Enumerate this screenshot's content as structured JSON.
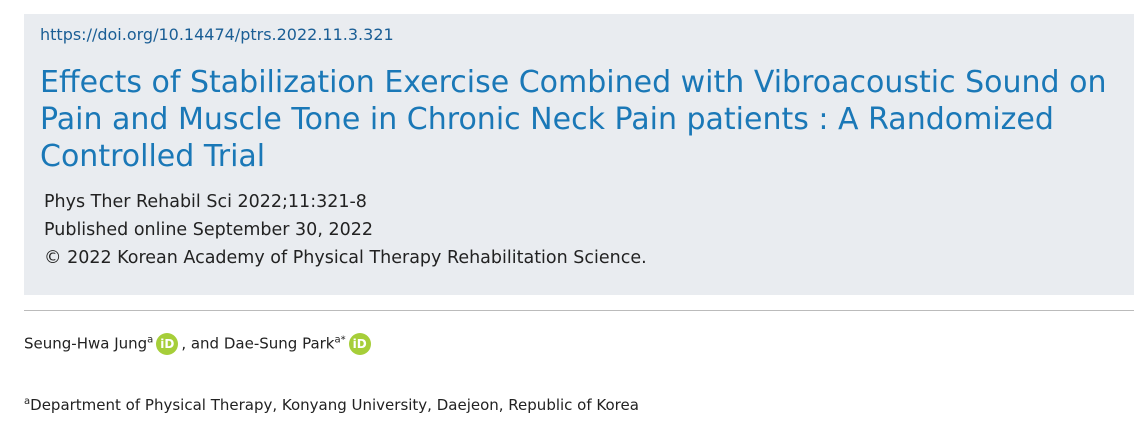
{
  "header": {
    "doi": "https://doi.org/10.14474/ptrs.2022.11.3.321",
    "title": "Effects of Stabilization Exercise Combined with Vibroacoustic Sound on Pain and Muscle Tone in Chronic Neck Pain patients : A Randomized Controlled Trial",
    "citation": "Phys Ther Rehabil Sci 2022;11:321-8",
    "published": "Published online September 30, 2022",
    "copyright": "© 2022 Korean Academy of Physical Therapy Rehabilitation Science."
  },
  "authors": [
    {
      "name": "Seung-Hwa Jung",
      "sup": "a",
      "sep": ", and"
    },
    {
      "name": "Dae-Sung Park",
      "sup": "a*"
    }
  ],
  "affiliation": {
    "sup": "a",
    "text": "Department of Physical Therapy, Konyang University, Daejeon, Republic of Korea"
  }
}
